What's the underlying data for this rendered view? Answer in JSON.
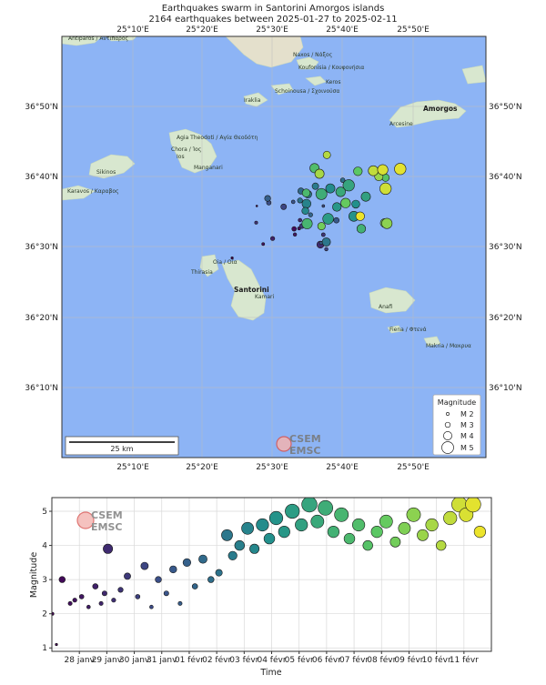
{
  "map": {
    "title_line1": "Earthquakes swarm in Santorini Amorgos islands",
    "title_line2": "2164 earthquakes between 2025-01-27 to 2025-02-11",
    "lon_ticks": [
      "25°10'E",
      "25°20'E",
      "25°30'E",
      "25°40'E",
      "25°50'E"
    ],
    "lat_ticks": [
      "36°50'N",
      "36°40'N",
      "36°30'N",
      "36°20'N",
      "36°10'N"
    ],
    "scale_label": "25 km",
    "legend": {
      "title": "Magnitude",
      "items": [
        "M 2",
        "M 3",
        "M 4",
        "M 5"
      ]
    },
    "places": [
      {
        "name": "Antiparos / Αντίπαρος"
      },
      {
        "name": "Naxos / Νάξος"
      },
      {
        "name": "Koufonisia / Κουφονήσια"
      },
      {
        "name": "Keros"
      },
      {
        "name": "Schoinousa / Σχοινούσα"
      },
      {
        "name": "Iraklia"
      },
      {
        "name": "Agia Theodoti / Αγία Θεοδότη"
      },
      {
        "name": "Chora / Ίος"
      },
      {
        "name": "Ios"
      },
      {
        "name": "Manganari"
      },
      {
        "name": "Sikinos"
      },
      {
        "name": "Karavos / Καραβος"
      },
      {
        "name": "Amorgos"
      },
      {
        "name": "Arcesine"
      },
      {
        "name": "Oia / Οία"
      },
      {
        "name": "Thirasia"
      },
      {
        "name": "Santorini"
      },
      {
        "name": "Kamari"
      },
      {
        "name": "Anafi"
      },
      {
        "name": "Fiena / Φτενά"
      },
      {
        "name": "Makria / Μακρυα"
      }
    ]
  },
  "logo": {
    "line1": "CSEM",
    "line2": "EMSC"
  },
  "colors": {
    "sea": "#8db4f5",
    "land": "#d8e7cf",
    "viridis": [
      "#440154",
      "#3b528b",
      "#21918c",
      "#5ec962",
      "#fde725"
    ]
  },
  "chart_data": {
    "type": "scatter",
    "title": "",
    "xlabel": "Time",
    "ylabel": "Magnitude",
    "x_tick_labels": [
      "28 janv",
      "29 janv",
      "30 janv",
      "31 janv",
      "01 févr",
      "02 févr",
      "03 févr",
      "04 févr",
      "05 févr",
      "06 févr",
      "07 févr",
      "08 févr",
      "09 févr",
      "10 févr",
      "11 févr"
    ],
    "x_range": [
      "2025-01-27",
      "2025-02-11"
    ],
    "ylim": [
      0.9,
      5.4
    ],
    "y_ticks": [
      1,
      2,
      3,
      4,
      5
    ],
    "grid": true,
    "marker_size_encodes": "magnitude",
    "marker_color_encodes": "time (viridis)",
    "points": [
      [
        "2025-01-27T00:30",
        2.0
      ],
      [
        "2025-01-27T04:00",
        1.1
      ],
      [
        "2025-01-27T09:00",
        3.0
      ],
      [
        "2025-01-27T16:00",
        2.3
      ],
      [
        "2025-01-27T20:00",
        2.4
      ],
      [
        "2025-01-28T02:00",
        2.5
      ],
      [
        "2025-01-28T08:00",
        2.2
      ],
      [
        "2025-01-28T14:00",
        2.8
      ],
      [
        "2025-01-28T19:00",
        2.3
      ],
      [
        "2025-01-28T22:00",
        2.6
      ],
      [
        "2025-01-29T01:00",
        3.9
      ],
      [
        "2025-01-29T06:00",
        2.4
      ],
      [
        "2025-01-29T12:00",
        2.7
      ],
      [
        "2025-01-29T18:00",
        3.1
      ],
      [
        "2025-01-30T03:00",
        2.5
      ],
      [
        "2025-01-30T09:00",
        3.4
      ],
      [
        "2025-01-30T15:00",
        2.2
      ],
      [
        "2025-01-30T21:00",
        3.0
      ],
      [
        "2025-01-31T04:00",
        2.6
      ],
      [
        "2025-01-31T10:00",
        3.3
      ],
      [
        "2025-01-31T16:00",
        2.3
      ],
      [
        "2025-01-31T22:00",
        3.5
      ],
      [
        "2025-02-01T05:00",
        2.8
      ],
      [
        "2025-02-01T12:00",
        3.6
      ],
      [
        "2025-02-01T19:00",
        3.0
      ],
      [
        "2025-02-02T02:00",
        3.2
      ],
      [
        "2025-02-02T09:00",
        4.3
      ],
      [
        "2025-02-02T14:00",
        3.7
      ],
      [
        "2025-02-02T20:00",
        4.0
      ],
      [
        "2025-02-03T03:00",
        4.5
      ],
      [
        "2025-02-03T09:00",
        3.9
      ],
      [
        "2025-02-03T16:00",
        4.6
      ],
      [
        "2025-02-03T22:00",
        4.2
      ],
      [
        "2025-02-04T04:00",
        4.8
      ],
      [
        "2025-02-04T11:00",
        4.4
      ],
      [
        "2025-02-04T18:00",
        5.0
      ],
      [
        "2025-02-05T02:00",
        4.6
      ],
      [
        "2025-02-05T09:00",
        5.2
      ],
      [
        "2025-02-05T16:00",
        4.7
      ],
      [
        "2025-02-05T23:00",
        5.1
      ],
      [
        "2025-02-06T06:00",
        4.4
      ],
      [
        "2025-02-06T13:00",
        4.9
      ],
      [
        "2025-02-06T20:00",
        4.2
      ],
      [
        "2025-02-07T04:00",
        4.6
      ],
      [
        "2025-02-07T12:00",
        4.0
      ],
      [
        "2025-02-07T20:00",
        4.4
      ],
      [
        "2025-02-08T04:00",
        4.7
      ],
      [
        "2025-02-08T12:00",
        4.1
      ],
      [
        "2025-02-08T20:00",
        4.5
      ],
      [
        "2025-02-09T04:00",
        4.9
      ],
      [
        "2025-02-09T12:00",
        4.3
      ],
      [
        "2025-02-09T20:00",
        4.6
      ],
      [
        "2025-02-10T04:00",
        4.0
      ],
      [
        "2025-02-10T12:00",
        4.8
      ],
      [
        "2025-02-10T20:00",
        5.2
      ],
      [
        "2025-02-11T02:00",
        4.9
      ],
      [
        "2025-02-11T08:00",
        5.2
      ],
      [
        "2025-02-11T14:00",
        4.4
      ]
    ]
  }
}
